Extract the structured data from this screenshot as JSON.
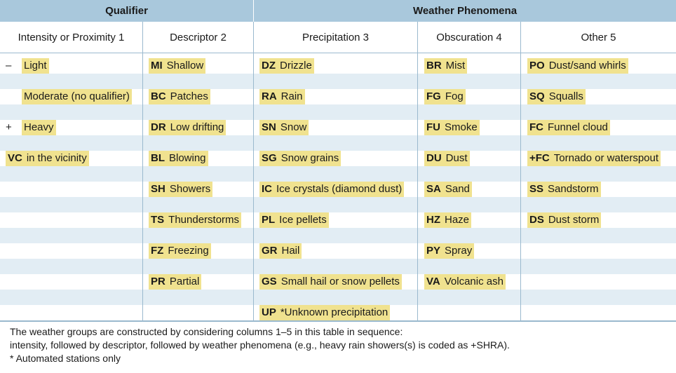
{
  "headers": {
    "qualifier": "Qualifier",
    "weather_phenomena": "Weather Phenomena",
    "col1": "Intensity or Proximity 1",
    "col2": "Descriptor 2",
    "col3": "Precipitation 3",
    "col4": "Obscuration 4",
    "col5": "Other 5"
  },
  "intensity": [
    {
      "code": "–",
      "label": "Light"
    },
    {
      "code": "",
      "label": "Moderate (no qualifier)"
    },
    {
      "code": "+",
      "label": "Heavy"
    },
    {
      "code": "VC",
      "label": "in the vicinity"
    }
  ],
  "descriptor": [
    {
      "code": "MI",
      "label": "Shallow"
    },
    {
      "code": "BC",
      "label": "Patches"
    },
    {
      "code": "DR",
      "label": "Low drifting"
    },
    {
      "code": "BL",
      "label": "Blowing"
    },
    {
      "code": "SH",
      "label": "Showers"
    },
    {
      "code": "TS",
      "label": "Thunderstorms"
    },
    {
      "code": "FZ",
      "label": "Freezing"
    },
    {
      "code": "PR",
      "label": "Partial"
    }
  ],
  "precipitation": [
    {
      "code": "DZ",
      "label": "Drizzle"
    },
    {
      "code": "RA",
      "label": "Rain"
    },
    {
      "code": "SN",
      "label": "Snow"
    },
    {
      "code": "SG",
      "label": "Snow grains"
    },
    {
      "code": "IC",
      "label": "Ice crystals (diamond dust)"
    },
    {
      "code": "PL",
      "label": "Ice pellets"
    },
    {
      "code": "GR",
      "label": "Hail"
    },
    {
      "code": "GS",
      "label": "Small hail or snow pellets"
    },
    {
      "code": "UP",
      "label": "*Unknown precipitation"
    }
  ],
  "obscuration": [
    {
      "code": "BR",
      "label": "Mist"
    },
    {
      "code": "FG",
      "label": "Fog"
    },
    {
      "code": "FU",
      "label": "Smoke"
    },
    {
      "code": "DU",
      "label": "Dust"
    },
    {
      "code": "SA",
      "label": "Sand"
    },
    {
      "code": "HZ",
      "label": "Haze"
    },
    {
      "code": "PY",
      "label": "Spray"
    },
    {
      "code": "VA",
      "label": "Volcanic ash"
    }
  ],
  "other": [
    {
      "code": "PO",
      "label": "Dust/sand whirls"
    },
    {
      "code": "SQ",
      "label": "Squalls"
    },
    {
      "code": "FC",
      "label": "Funnel cloud"
    },
    {
      "code": "+FC",
      "label": "Tornado or waterspout"
    },
    {
      "code": "SS",
      "label": "Sandstorm"
    },
    {
      "code": "DS",
      "label": "Dust storm"
    }
  ],
  "footer": {
    "line1": "The weather groups are constructed by considering columns 1–5 in this table in sequence:",
    "line2": "intensity, followed by descriptor, followed by weather phenomena (e.g., heavy rain showers(s) is coded as +SHRA).",
    "line3": "* Automated stations only"
  },
  "colors": {
    "header_bg": "#a9c8dc",
    "band_bg": "#e2edf4",
    "highlight": "#f0e28f"
  }
}
